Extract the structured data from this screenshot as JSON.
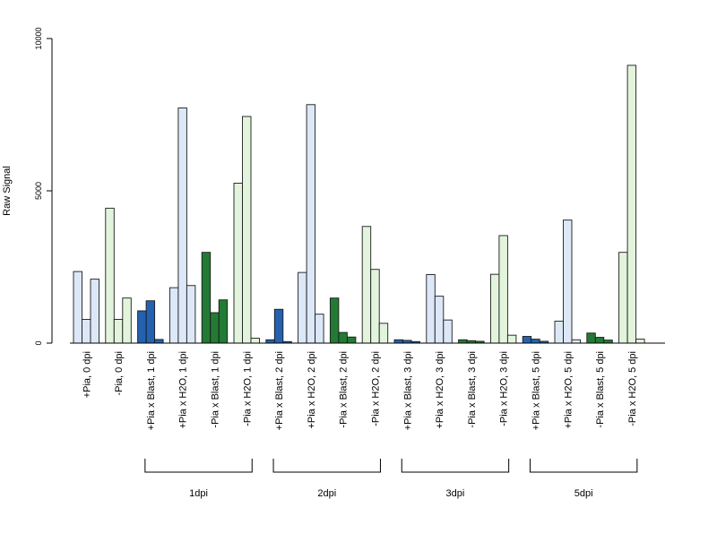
{
  "chart_data": {
    "type": "bar",
    "ylabel": "Raw Signal",
    "xlabel": "",
    "title": "",
    "ylim": [
      0,
      10000
    ],
    "yticks": [
      0,
      5000,
      10000
    ],
    "grid": false,
    "colors": {
      "light_blue": "#dce8f7",
      "dark_blue": "#2462b0",
      "light_green": "#e2f5dc",
      "dark_green": "#237a35",
      "border": "#1a1a1a"
    },
    "categories": [
      "+Pia, 0 dpi",
      "-Pia, 0 dpi",
      "+Pia x Blast, 1 dpi",
      "+Pia x H2O, 1 dpi",
      "-Pia x Blast, 1 dpi",
      "-Pia x H2O, 1 dpi",
      "+Pia x Blast, 2 dpi",
      "+Pia x H2O, 2 dpi",
      "-Pia x Blast, 2 dpi",
      "-Pia x H2O, 2 dpi",
      "+Pia x Blast, 3 dpi",
      "+Pia x H2O, 3 dpi",
      "-Pia x Blast, 3 dpi",
      "-Pia x H2O, 3 dpi",
      "+Pia x Blast, 5 dpi",
      "+Pia x H2O, 5 dpi",
      "-Pia x Blast, 5 dpi",
      "-Pia x H2O, 5 dpi"
    ],
    "category_colors": [
      "light_blue",
      "light_green",
      "dark_blue",
      "light_blue",
      "dark_green",
      "light_green",
      "dark_blue",
      "light_blue",
      "dark_green",
      "light_green",
      "dark_blue",
      "light_blue",
      "dark_green",
      "light_green",
      "dark_blue",
      "light_blue",
      "dark_green",
      "light_green"
    ],
    "replicate_values": [
      [
        2350,
        780,
        2100
      ],
      [
        4430,
        780,
        1480
      ],
      [
        1060,
        1390,
        120
      ],
      [
        1820,
        7720,
        1890
      ],
      [
        2980,
        1000,
        1420
      ],
      [
        5250,
        7440,
        160
      ],
      [
        110,
        1110,
        50
      ],
      [
        2320,
        7830,
        950
      ],
      [
        1480,
        350,
        200
      ],
      [
        3830,
        2420,
        650
      ],
      [
        110,
        90,
        50
      ],
      [
        2250,
        1540,
        760
      ],
      [
        110,
        80,
        60
      ],
      [
        2260,
        3530,
        260
      ],
      [
        220,
        130,
        60
      ],
      [
        720,
        4040,
        110
      ],
      [
        330,
        190,
        100
      ],
      [
        2980,
        9120,
        130
      ]
    ],
    "groups": [
      {
        "label": "1dpi",
        "from": 2,
        "to": 5
      },
      {
        "label": "2dpi",
        "from": 6,
        "to": 9
      },
      {
        "label": "3dpi",
        "from": 10,
        "to": 13
      },
      {
        "label": "5dpi",
        "from": 14,
        "to": 17
      }
    ]
  }
}
